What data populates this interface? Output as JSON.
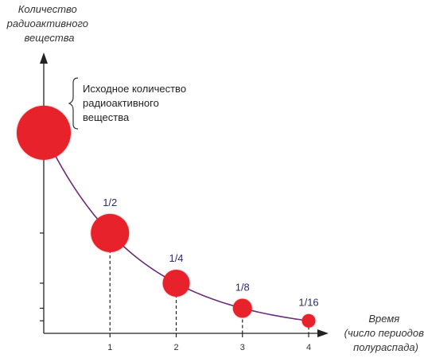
{
  "diagram": {
    "ylabel_lines": [
      "Количество",
      "радиоактивного",
      "вещества"
    ],
    "xlabel_lines": [
      "Время",
      "(число периодов",
      "полураспада)"
    ],
    "annotation_lines": [
      "Исходное количество",
      "радиоактивного",
      "вещества"
    ],
    "colors": {
      "circle": "#e8222a",
      "curve": "#6b2c7a",
      "fraction_text": "#2b2b6a"
    }
  },
  "chart_data": {
    "type": "line",
    "x": [
      0,
      1,
      2,
      3,
      4
    ],
    "values": [
      1,
      0.5,
      0.25,
      0.125,
      0.0625
    ],
    "point_labels": [
      "",
      "1/2",
      "1/4",
      "1/8",
      "1/16"
    ],
    "x_tick_labels": [
      "1",
      "2",
      "3",
      "4"
    ],
    "title": "",
    "xlim": [
      0,
      4.3
    ],
    "ylim": [
      0,
      1.4
    ],
    "grid": false
  }
}
